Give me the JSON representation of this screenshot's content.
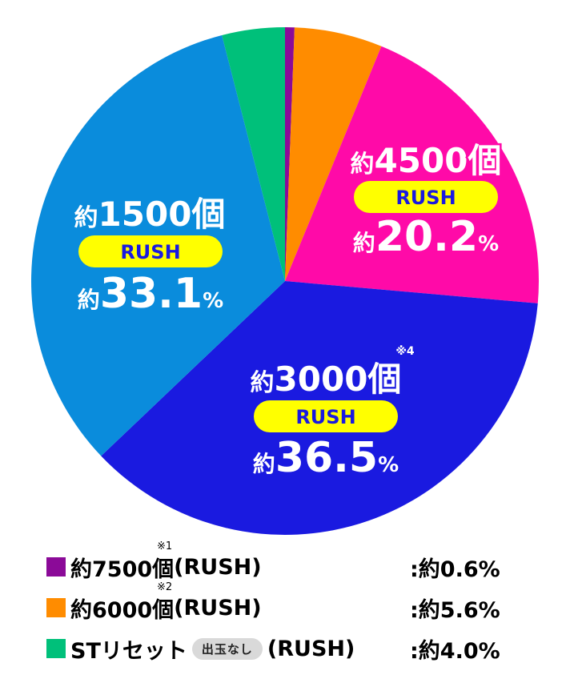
{
  "chart_data": {
    "type": "pie",
    "slices": [
      {
        "label": "約7500個(RUSH)",
        "value": 0.6,
        "color": "#8b0a98"
      },
      {
        "label": "約6000個(RUSH)",
        "value": 5.6,
        "color": "#ff8c00"
      },
      {
        "label": "約4500個 RUSH",
        "value": 20.2,
        "color": "#ff0aa8"
      },
      {
        "label": "約3000個 RUSH",
        "value": 36.5,
        "color": "#1a1ae0"
      },
      {
        "label": "約1500個 RUSH",
        "value": 33.1,
        "color": "#0a8cdc"
      },
      {
        "label": "STリセット 出玉なし (RUSH)",
        "value": 4.0,
        "color": "#00c07a"
      }
    ],
    "slice_labels": [
      {
        "prefix": "約",
        "count": "4500",
        "unit": "個",
        "note": "※3",
        "badge": "RUSH",
        "pct": "20.2",
        "pct_unit": "%"
      },
      {
        "prefix": "約",
        "count": "3000",
        "unit": "個",
        "note": "※4",
        "badge": "RUSH",
        "pct": "36.5",
        "pct_unit": "%"
      },
      {
        "prefix": "約",
        "count": "1500",
        "unit": "個",
        "note": "",
        "badge": "RUSH",
        "pct": "33.1",
        "pct_unit": "%"
      }
    ],
    "legend": [
      {
        "name_main": "約7500個",
        "note": "※1",
        "name_tail": "(RUSH)",
        "value": ":約0.6%",
        "color": "#8b0a98"
      },
      {
        "name_main": "約6000個",
        "note": "※2",
        "name_tail": "(RUSH)",
        "value": ":約5.6%",
        "color": "#ff8c00"
      },
      {
        "name_main": "STリセット",
        "badge": "出玉なし",
        "name_tail": "(RUSH)",
        "value": ":約4.0%",
        "color": "#00c07a"
      }
    ]
  }
}
